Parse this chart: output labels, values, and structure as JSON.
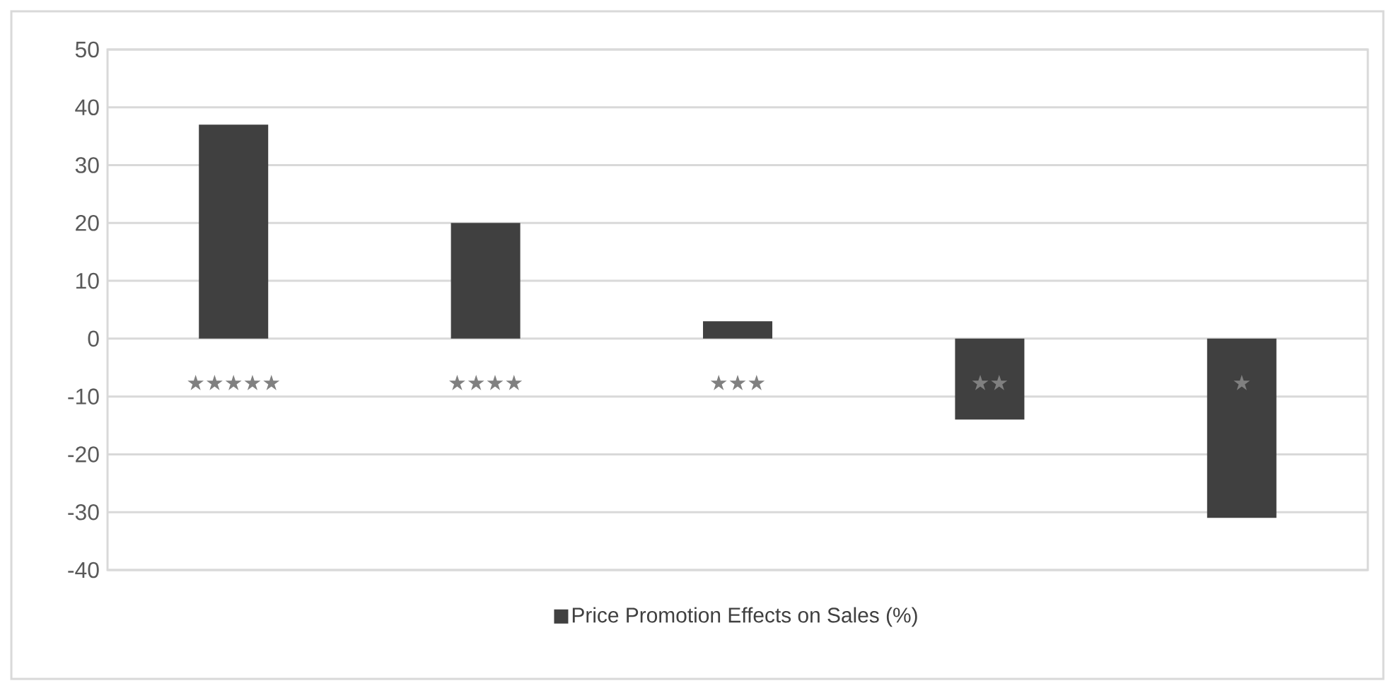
{
  "chart_data": {
    "type": "bar",
    "categories": [
      "★★★★★",
      "★★★★",
      "★★★",
      "★★",
      "★"
    ],
    "series": [
      {
        "name": "Price Promotion Effects on Sales (%)",
        "color": "#404040",
        "values": [
          37,
          20,
          3,
          -14,
          -31
        ]
      }
    ],
    "ylim": [
      -40,
      50
    ],
    "yticks": [
      -40,
      -30,
      -20,
      -10,
      0,
      10,
      20,
      30,
      40,
      50
    ],
    "grid": true,
    "legend": "bottom"
  }
}
